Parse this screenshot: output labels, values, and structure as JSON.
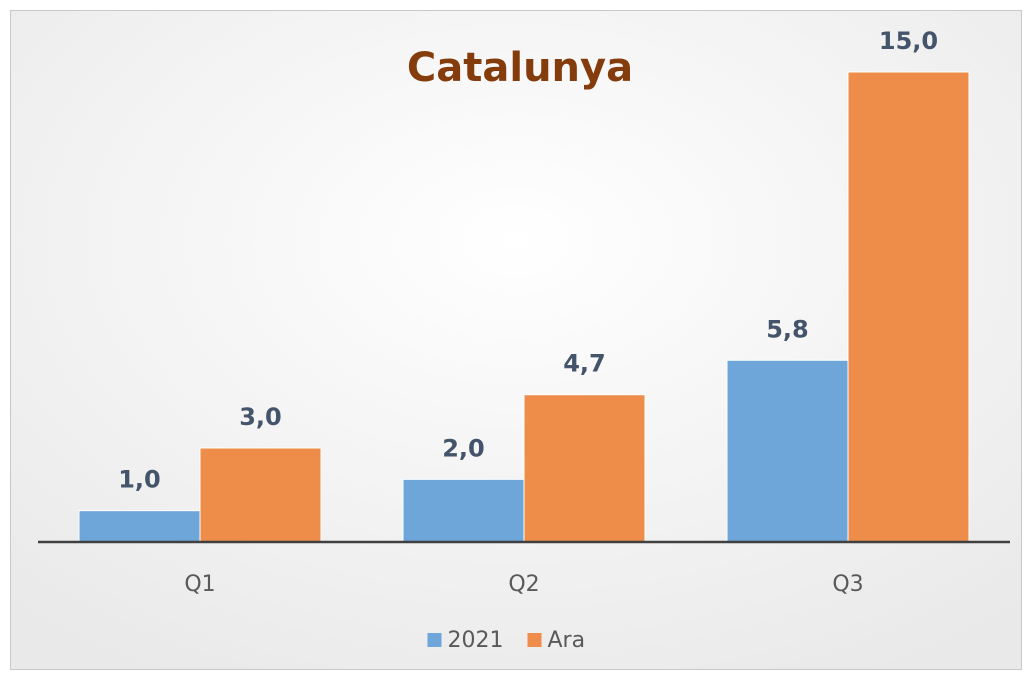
{
  "chart_data": {
    "type": "bar",
    "title": "Catalunya",
    "categories": [
      "Q1",
      "Q2",
      "Q3"
    ],
    "series": [
      {
        "name": "2021",
        "color": "#6fa6d9",
        "values": [
          1.0,
          2.0,
          5.8
        ],
        "value_labels": [
          "1,0",
          "2,0",
          "5,8"
        ]
      },
      {
        "name": "Ara",
        "color": "#ee8c4a",
        "values": [
          3.0,
          4.7,
          15.0
        ],
        "value_labels": [
          "3,0",
          "4,7",
          "15,0"
        ]
      }
    ],
    "ylim": [
      0,
      15
    ],
    "legend": "bottom"
  }
}
